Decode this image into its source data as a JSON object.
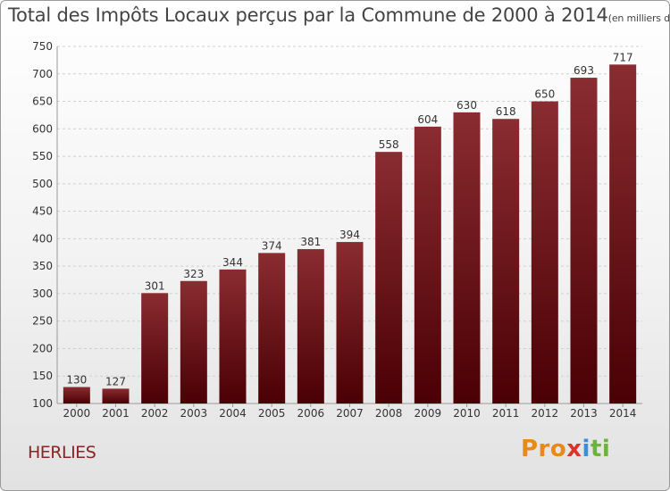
{
  "chart_data": {
    "type": "bar",
    "title": "Total des Impôts Locaux perçus par la Commune de 2000 à 2014",
    "title_unit": "(en milliers d'€)",
    "categories": [
      "2000",
      "2001",
      "2002",
      "2003",
      "2004",
      "2005",
      "2006",
      "2007",
      "2008",
      "2009",
      "2010",
      "2011",
      "2012",
      "2013",
      "2014"
    ],
    "values": [
      130,
      127,
      301,
      323,
      344,
      374,
      381,
      394,
      558,
      604,
      630,
      618,
      650,
      693,
      717
    ],
    "ylim": [
      100,
      750
    ],
    "yticks": [
      100,
      150,
      200,
      250,
      300,
      350,
      400,
      450,
      500,
      550,
      600,
      650,
      700,
      750
    ],
    "xlabel": "",
    "ylabel": "",
    "grid": true,
    "bar_color": "#7a1a1e"
  },
  "commune": "HERLIES",
  "logo": {
    "p1": "Pro",
    "p2": "x",
    "p3": "i",
    "p4": "ti"
  }
}
